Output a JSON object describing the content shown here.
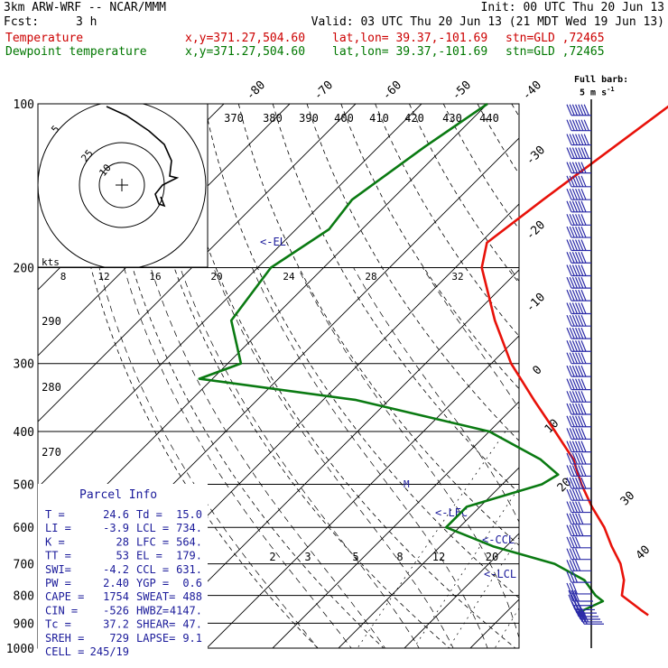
{
  "header": {
    "model": "3km ARW-WRF -- NCAR/MMM",
    "init": "Init: 00 UTC Thu 20 Jun 13",
    "fcst_label": "Fcst:",
    "fcst_value": "3 h",
    "valid": "Valid: 03 UTC Thu 20 Jun 13 (21 MDT Wed 19 Jun 13)",
    "temp_line": {
      "name": "Temperature",
      "xy": "x,y=371.27,504.60",
      "latlon": "lat,lon= 39.37,-101.69",
      "stn": "stn=GLD ,72465"
    },
    "dew_line": {
      "name": "Dewpoint temperature",
      "xy": "x,y=371.27,504.60",
      "latlon": "lat,lon= 39.37,-101.69",
      "stn": "stn=GLD ,72465"
    },
    "full_barb_1": "Full barb:",
    "full_barb_2": "5 m s",
    "full_barb_sup": "-1"
  },
  "colors": {
    "temperature": "#e8120a",
    "dewpoint": "#0a7a12",
    "barbs": "#2b2ba8",
    "header_temp": "#cc0000",
    "header_dew": "#007700",
    "parcel": "#1a1a9a"
  },
  "chart_data": {
    "type": "line",
    "title": "",
    "ylabel": "",
    "pressure_levels": [
      "100",
      "200",
      "300",
      "400",
      "500",
      "600",
      "700",
      "800",
      "900",
      "1000"
    ],
    "top_isotherm_labels": [
      "-80",
      "-70",
      "-60",
      "-50",
      "-40"
    ],
    "right_isotherm_labels": [
      "-30",
      "-20",
      "-10",
      "0",
      "10",
      "20",
      "30",
      "40"
    ],
    "theta_labels": [
      "370",
      "380",
      "390",
      "400",
      "410",
      "420",
      "430",
      "440"
    ],
    "theta_left_labels": [
      "290",
      "280",
      "270"
    ],
    "mixing_ratio_labels": [
      "2",
      "3",
      "5",
      "8",
      "12",
      "20"
    ],
    "annotations": [
      "<-EL",
      "<-LFC",
      "<-CCL",
      "<-LCL",
      "M"
    ],
    "hodograph": {
      "units_label": "kts",
      "ring_labels": [
        "5",
        "25",
        "10"
      ],
      "speed_labels": [
        "8",
        "12",
        "16",
        "20",
        "24",
        "28",
        "32"
      ]
    },
    "series": [
      {
        "name": "Temperature",
        "points_pT": [
          [
            100,
            -52
          ],
          [
            150,
            -57
          ],
          [
            180,
            -59
          ],
          [
            200,
            -56
          ],
          [
            250,
            -46
          ],
          [
            300,
            -37
          ],
          [
            350,
            -28
          ],
          [
            400,
            -20
          ],
          [
            450,
            -13
          ],
          [
            500,
            -8
          ],
          [
            550,
            -3
          ],
          [
            600,
            2
          ],
          [
            650,
            6
          ],
          [
            700,
            10
          ],
          [
            750,
            13
          ],
          [
            800,
            15
          ],
          [
            850,
            20
          ],
          [
            870,
            22
          ]
        ]
      },
      {
        "name": "Dewpoint temperature",
        "points_pT": [
          [
            100,
            -80
          ],
          [
            120,
            -83
          ],
          [
            150,
            -86
          ],
          [
            170,
            -85
          ],
          [
            200,
            -88
          ],
          [
            250,
            -86
          ],
          [
            300,
            -78
          ],
          [
            320,
            -82
          ],
          [
            350,
            -55
          ],
          [
            400,
            -30
          ],
          [
            450,
            -18
          ],
          [
            480,
            -13
          ],
          [
            500,
            -14
          ],
          [
            550,
            -22
          ],
          [
            600,
            -22
          ],
          [
            650,
            -12
          ],
          [
            700,
            0
          ],
          [
            750,
            7
          ],
          [
            800,
            11
          ],
          [
            820,
            13
          ],
          [
            860,
            11
          ]
        ]
      }
    ],
    "parcel_info": {
      "title": "Parcel Info",
      "rows": [
        [
          "T  =",
          "24.6",
          "Td =",
          "15.0"
        ],
        [
          "LI =",
          "-3.9",
          "LCL =",
          "734."
        ],
        [
          "K  =",
          "28",
          "LFC =",
          "564."
        ],
        [
          "TT =",
          "53",
          "EL  =",
          "179."
        ],
        [
          "SWI=",
          "-4.2",
          "CCL =",
          "631."
        ],
        [
          "PW =",
          "2.40",
          "YGP =",
          "0.6"
        ],
        [
          "CAPE =",
          "1754",
          "SWEAT=",
          "488"
        ],
        [
          "CIN  =",
          "-526",
          "HWBZ=",
          "4147."
        ],
        [
          "Tc   =",
          "37.2",
          "SHEAR=",
          "47."
        ],
        [
          "SREH =",
          "729",
          "LAPSE=",
          "9.1"
        ],
        [
          "CELL =",
          "245/19",
          "",
          ""
        ]
      ]
    },
    "wind_barbs_hz": [
      [
        105,
        0,
        7
      ],
      [
        112,
        0,
        7
      ],
      [
        119,
        0,
        7
      ],
      [
        126,
        0,
        7
      ],
      [
        134,
        0,
        6
      ],
      [
        142,
        0,
        6
      ],
      [
        150,
        0,
        6
      ],
      [
        158,
        0,
        6
      ],
      [
        167,
        0,
        6
      ],
      [
        176,
        0,
        6
      ],
      [
        186,
        0,
        6
      ],
      [
        196,
        0,
        6
      ],
      [
        207,
        0,
        6
      ],
      [
        218,
        0,
        6
      ],
      [
        230,
        0,
        6
      ],
      [
        243,
        0,
        6
      ],
      [
        256,
        0,
        6
      ],
      [
        270,
        0,
        6
      ],
      [
        285,
        0,
        6
      ],
      [
        300,
        0,
        6
      ],
      [
        317,
        0,
        6
      ],
      [
        335,
        0,
        6
      ],
      [
        353,
        0,
        6
      ],
      [
        372,
        0,
        6
      ],
      [
        392,
        0,
        6
      ],
      [
        413,
        0,
        6
      ],
      [
        436,
        0,
        6
      ],
      [
        459,
        0,
        6
      ],
      [
        483,
        0,
        6
      ],
      [
        509,
        0,
        6
      ],
      [
        535,
        0,
        5
      ],
      [
        563,
        0,
        5
      ],
      [
        592,
        0,
        5
      ],
      [
        622,
        0,
        5
      ],
      [
        654,
        0,
        4
      ],
      [
        687,
        0,
        4
      ],
      [
        721,
        0,
        4
      ],
      [
        757,
        0,
        3
      ],
      [
        795,
        0,
        3
      ],
      [
        820,
        1,
        3
      ],
      [
        835,
        1,
        3
      ],
      [
        850,
        2,
        3
      ],
      [
        862,
        3,
        3
      ],
      [
        875,
        4,
        3
      ],
      [
        885,
        5,
        3
      ],
      [
        895,
        6,
        3
      ],
      [
        903,
        7,
        2
      ]
    ]
  }
}
